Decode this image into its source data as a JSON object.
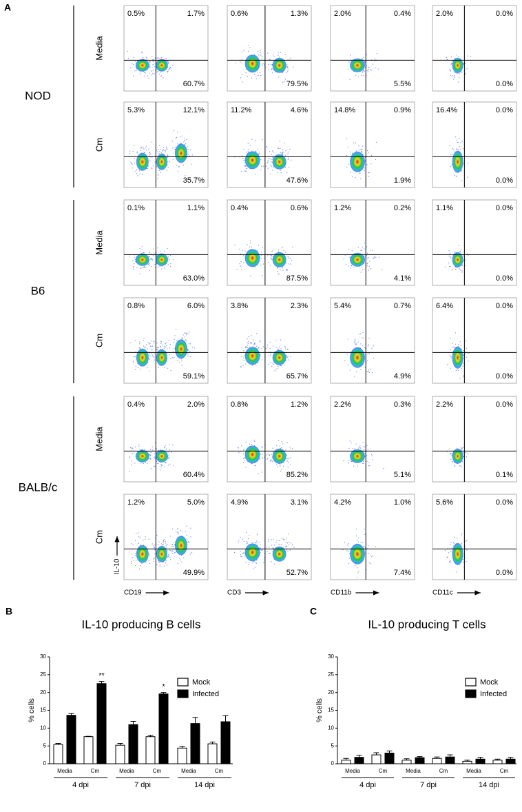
{
  "panel_labels": [
    "A",
    "B",
    "C"
  ],
  "panel_a": {
    "x_labels": [
      "CD19",
      "CD3",
      "CD11b",
      "CD11c"
    ],
    "y_label": "IL-10",
    "groups": [
      {
        "name": "NOD",
        "rows": [
          {
            "condition": "Media",
            "plots": [
              [
                "0.5%",
                "1.7%",
                "60.7%"
              ],
              [
                "0.6%",
                "1.3%",
                "79.5%"
              ],
              [
                "2.0%",
                "0.4%",
                "5.5%"
              ],
              [
                "2.0%",
                "0.0%",
                "0.0%"
              ]
            ]
          },
          {
            "condition": "Cm",
            "plots": [
              [
                "5.3%",
                "12.1%",
                "35.7%"
              ],
              [
                "11.2%",
                "4.6%",
                "47.6%"
              ],
              [
                "14.8%",
                "0.9%",
                "1.9%"
              ],
              [
                "16.4%",
                "0.0%",
                "0.0%"
              ]
            ]
          }
        ]
      },
      {
        "name": "B6",
        "rows": [
          {
            "condition": "Media",
            "plots": [
              [
                "0.1%",
                "1.1%",
                "63.0%"
              ],
              [
                "0.4%",
                "0.6%",
                "87.5%"
              ],
              [
                "1.2%",
                "0.2%",
                "4.1%"
              ],
              [
                "1.1%",
                "0.0%",
                "0.0%"
              ]
            ]
          },
          {
            "condition": "Cm",
            "plots": [
              [
                "0.8%",
                "6.0%",
                "59.1%"
              ],
              [
                "3.8%",
                "2.3%",
                "65.7%"
              ],
              [
                "5.4%",
                "0.7%",
                "4.9%"
              ],
              [
                "6.4%",
                "0.0%",
                "0.0%"
              ]
            ]
          }
        ]
      },
      {
        "name": "BALB/c",
        "rows": [
          {
            "condition": "Media",
            "plots": [
              [
                "0.4%",
                "2.0%",
                "60.4%"
              ],
              [
                "0.8%",
                "1.2%",
                "85.2%"
              ],
              [
                "2.2%",
                "0.3%",
                "5.1%"
              ],
              [
                "2.2%",
                "0.0%",
                "0.1%"
              ]
            ]
          },
          {
            "condition": "Cm",
            "plots": [
              [
                "1.2%",
                "5.0%",
                "49.9%"
              ],
              [
                "4.9%",
                "3.1%",
                "52.7%"
              ],
              [
                "4.2%",
                "1.0%",
                "7.4%"
              ],
              [
                "5.6%",
                "0.0%",
                "0.0%"
              ]
            ]
          }
        ]
      }
    ]
  },
  "chart_data": [
    {
      "type": "bar",
      "title": "IL-10 producing B cells",
      "ylabel": "% cells",
      "categories": [
        "Media",
        "Cm",
        "Media",
        "Cm",
        "Media",
        "Cm"
      ],
      "groups": [
        "4 dpi",
        "7 dpi",
        "14 dpi"
      ],
      "series": [
        {
          "name": "Mock",
          "color": "#ffffff",
          "values": [
            5.4,
            7.6,
            5.2,
            7.6,
            4.4,
            5.6
          ],
          "errors": [
            0.3,
            0.1,
            0.5,
            0.4,
            0.5,
            0.5
          ]
        },
        {
          "name": "Infected",
          "color": "#000000",
          "values": [
            13.6,
            22.5,
            11.0,
            19.6,
            11.3,
            11.8
          ],
          "errors": [
            0.5,
            0.6,
            0.9,
            0.4,
            1.7,
            1.7
          ]
        }
      ],
      "annotations": [
        "**",
        "*"
      ],
      "ylim": [
        0,
        30
      ],
      "yticks": [
        0,
        5,
        10,
        15,
        20,
        25,
        30
      ],
      "legend": "upper right"
    },
    {
      "type": "bar",
      "title": "IL-10 producing T cells",
      "ylabel": "% cells",
      "categories": [
        "Media",
        "Cm",
        "Media",
        "Cm",
        "Media",
        "Cm"
      ],
      "groups": [
        "4 dpi",
        "7 dpi",
        "14 dpi"
      ],
      "series": [
        {
          "name": "Mock",
          "color": "#ffffff",
          "values": [
            1.0,
            2.5,
            1.0,
            1.5,
            0.7,
            1.0
          ],
          "errors": [
            0.5,
            0.6,
            0.4,
            0.4,
            0.3,
            0.3
          ]
        },
        {
          "name": "Infected",
          "color": "#000000",
          "values": [
            1.8,
            3.0,
            1.7,
            1.9,
            1.3,
            1.3
          ],
          "errors": [
            0.6,
            0.6,
            0.3,
            0.6,
            0.5,
            0.5
          ]
        }
      ],
      "ylim": [
        0,
        30
      ],
      "yticks": [
        0,
        5,
        10,
        15,
        20,
        25,
        30
      ],
      "legend": "upper right"
    }
  ]
}
